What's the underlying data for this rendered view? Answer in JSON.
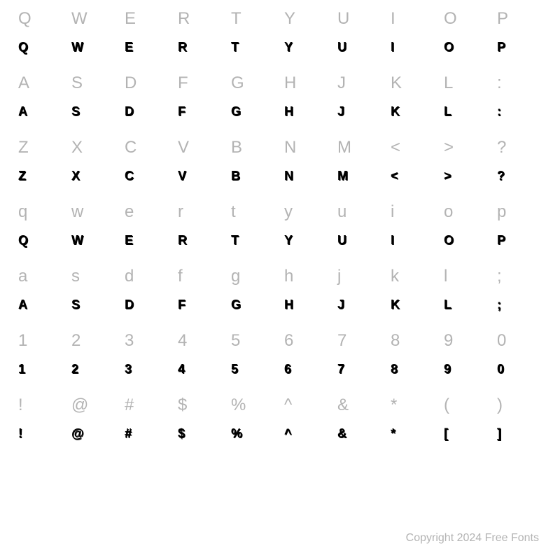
{
  "grid": {
    "columns": 10,
    "rows": 8,
    "reference_color": "#b3b3b3",
    "sample_color": "#000000",
    "background_color": "#ffffff",
    "reference_fontsize": 24,
    "sample_fontsize": 18,
    "cells": [
      {
        "ref": "Q",
        "sample": "Q"
      },
      {
        "ref": "W",
        "sample": "W"
      },
      {
        "ref": "E",
        "sample": "E"
      },
      {
        "ref": "R",
        "sample": "R"
      },
      {
        "ref": "T",
        "sample": "T"
      },
      {
        "ref": "Y",
        "sample": "Y"
      },
      {
        "ref": "U",
        "sample": "U"
      },
      {
        "ref": "I",
        "sample": "I"
      },
      {
        "ref": "O",
        "sample": "O"
      },
      {
        "ref": "P",
        "sample": "P"
      },
      {
        "ref": "A",
        "sample": "A"
      },
      {
        "ref": "S",
        "sample": "S"
      },
      {
        "ref": "D",
        "sample": "D"
      },
      {
        "ref": "F",
        "sample": "F"
      },
      {
        "ref": "G",
        "sample": "G"
      },
      {
        "ref": "H",
        "sample": "H"
      },
      {
        "ref": "J",
        "sample": "J"
      },
      {
        "ref": "K",
        "sample": "K"
      },
      {
        "ref": "L",
        "sample": "L"
      },
      {
        "ref": ":",
        "sample": ":"
      },
      {
        "ref": "Z",
        "sample": "Z"
      },
      {
        "ref": "X",
        "sample": "X"
      },
      {
        "ref": "C",
        "sample": "C"
      },
      {
        "ref": "V",
        "sample": "V"
      },
      {
        "ref": "B",
        "sample": "B"
      },
      {
        "ref": "N",
        "sample": "N"
      },
      {
        "ref": "M",
        "sample": "M"
      },
      {
        "ref": "<",
        "sample": "<"
      },
      {
        "ref": ">",
        "sample": ">"
      },
      {
        "ref": "?",
        "sample": "?"
      },
      {
        "ref": "q",
        "sample": "Q"
      },
      {
        "ref": "w",
        "sample": "W"
      },
      {
        "ref": "e",
        "sample": "E"
      },
      {
        "ref": "r",
        "sample": "R"
      },
      {
        "ref": "t",
        "sample": "T"
      },
      {
        "ref": "y",
        "sample": "Y"
      },
      {
        "ref": "u",
        "sample": "U"
      },
      {
        "ref": "i",
        "sample": "I"
      },
      {
        "ref": "o",
        "sample": "O"
      },
      {
        "ref": "p",
        "sample": "P"
      },
      {
        "ref": "a",
        "sample": "A"
      },
      {
        "ref": "s",
        "sample": "S"
      },
      {
        "ref": "d",
        "sample": "D"
      },
      {
        "ref": "f",
        "sample": "F"
      },
      {
        "ref": "g",
        "sample": "G"
      },
      {
        "ref": "h",
        "sample": "H"
      },
      {
        "ref": "j",
        "sample": "J"
      },
      {
        "ref": "k",
        "sample": "K"
      },
      {
        "ref": "l",
        "sample": "L"
      },
      {
        "ref": ";",
        "sample": ";"
      },
      {
        "ref": "1",
        "sample": "1"
      },
      {
        "ref": "2",
        "sample": "2"
      },
      {
        "ref": "3",
        "sample": "3"
      },
      {
        "ref": "4",
        "sample": "4"
      },
      {
        "ref": "5",
        "sample": "5"
      },
      {
        "ref": "6",
        "sample": "6"
      },
      {
        "ref": "7",
        "sample": "7"
      },
      {
        "ref": "8",
        "sample": "8"
      },
      {
        "ref": "9",
        "sample": "9"
      },
      {
        "ref": "0",
        "sample": "0"
      },
      {
        "ref": "!",
        "sample": "!"
      },
      {
        "ref": "@",
        "sample": "@"
      },
      {
        "ref": "#",
        "sample": "#"
      },
      {
        "ref": "$",
        "sample": "$"
      },
      {
        "ref": "%",
        "sample": "%"
      },
      {
        "ref": "^",
        "sample": "^"
      },
      {
        "ref": "&",
        "sample": "&"
      },
      {
        "ref": "*",
        "sample": "*"
      },
      {
        "ref": "(",
        "sample": "["
      },
      {
        "ref": ")",
        "sample": "]"
      }
    ]
  },
  "copyright": "Copyright 2024 Free Fonts"
}
